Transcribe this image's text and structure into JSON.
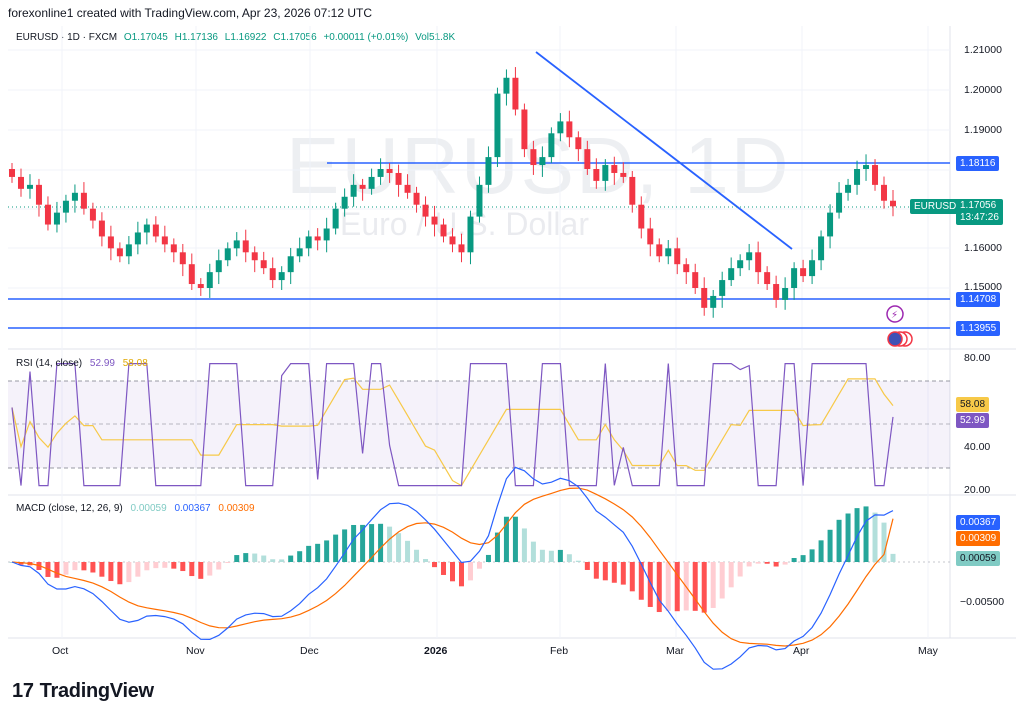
{
  "header": {
    "caption": "forexonline1 created with TradingView.com, Apr 23, 2026 07:12 UTC"
  },
  "legend": {
    "symbol": "EURUSD · 1D · FXCM",
    "open": "O1.17045",
    "high": "H1.17136",
    "low": "L1.16922",
    "close": "C1.17056",
    "change": "+0.00011 (+0.01%)",
    "volume": "Vol51.8K"
  },
  "watermark": {
    "symbol": "EURUSD, 1D",
    "name": "Euro / U.S. Dollar"
  },
  "price_axis": {
    "ticks": [
      "1.21000",
      "1.20000",
      "1.19000",
      "1.16000",
      "1.15000"
    ],
    "levels": {
      "upper": "1.18116",
      "mid": "1.14708",
      "lower": "1.13955"
    },
    "last_price": "1.17056",
    "countdown": "13:47:26",
    "symbol_tag": "EURUSD"
  },
  "rsi": {
    "label": "RSI (14, close)",
    "value": "52.99",
    "ma_value": "58.08",
    "ticks": [
      "80.00",
      "40.00",
      "20.00"
    ]
  },
  "macd": {
    "label": "MACD (close, 12, 26, 9)",
    "hist": "0.00059",
    "macd_line": "0.00367",
    "signal": "0.00309",
    "tick": "−0.00500"
  },
  "time_axis": [
    "Oct",
    "Nov",
    "Dec",
    "2026",
    "Feb",
    "Mar",
    "Apr",
    "May"
  ],
  "footer": {
    "brand": "TradingView",
    "logo": "17"
  },
  "colors": {
    "up": "#089981",
    "down": "#f23645",
    "line": "#2962ff",
    "rsi": "#7e57c2",
    "rsi_ma": "#f7c948",
    "macd": "#2962ff",
    "signal": "#ff6d00"
  },
  "chart_data": {
    "type": "candlestick",
    "symbol": "EURUSD",
    "timeframe": "1D",
    "close_path": [
      1.178,
      1.175,
      1.176,
      1.171,
      1.166,
      1.169,
      1.172,
      1.174,
      1.17,
      1.167,
      1.163,
      1.16,
      1.158,
      1.161,
      1.164,
      1.166,
      1.163,
      1.161,
      1.159,
      1.156,
      1.151,
      1.15,
      1.154,
      1.157,
      1.16,
      1.162,
      1.159,
      1.157,
      1.155,
      1.152,
      1.154,
      1.158,
      1.16,
      1.163,
      1.162,
      1.165,
      1.17,
      1.173,
      1.176,
      1.175,
      1.178,
      1.18,
      1.179,
      1.176,
      1.174,
      1.171,
      1.168,
      1.166,
      1.163,
      1.161,
      1.159,
      1.168,
      1.176,
      1.183,
      1.199,
      1.203,
      1.195,
      1.185,
      1.181,
      1.183,
      1.189,
      1.192,
      1.188,
      1.185,
      1.18,
      1.177,
      1.181,
      1.179,
      1.178,
      1.171,
      1.165,
      1.161,
      1.158,
      1.16,
      1.156,
      1.154,
      1.15,
      1.145,
      1.148,
      1.152,
      1.155,
      1.157,
      1.159,
      1.154,
      1.151,
      1.147,
      1.15,
      1.155,
      1.153,
      1.157,
      1.163,
      1.169,
      1.174,
      1.176,
      1.18,
      1.181,
      1.176,
      1.172,
      1.1706
    ],
    "levels": [
      1.18116,
      1.14708,
      1.13955
    ],
    "trendline": {
      "from": 1.2095,
      "to": 1.16
    },
    "rsi": {
      "last": 52.99,
      "ma": 58.08,
      "bands": [
        70,
        30
      ]
    },
    "macd": {
      "macd": 0.00367,
      "signal": 0.00309,
      "hist": 0.00059
    }
  }
}
